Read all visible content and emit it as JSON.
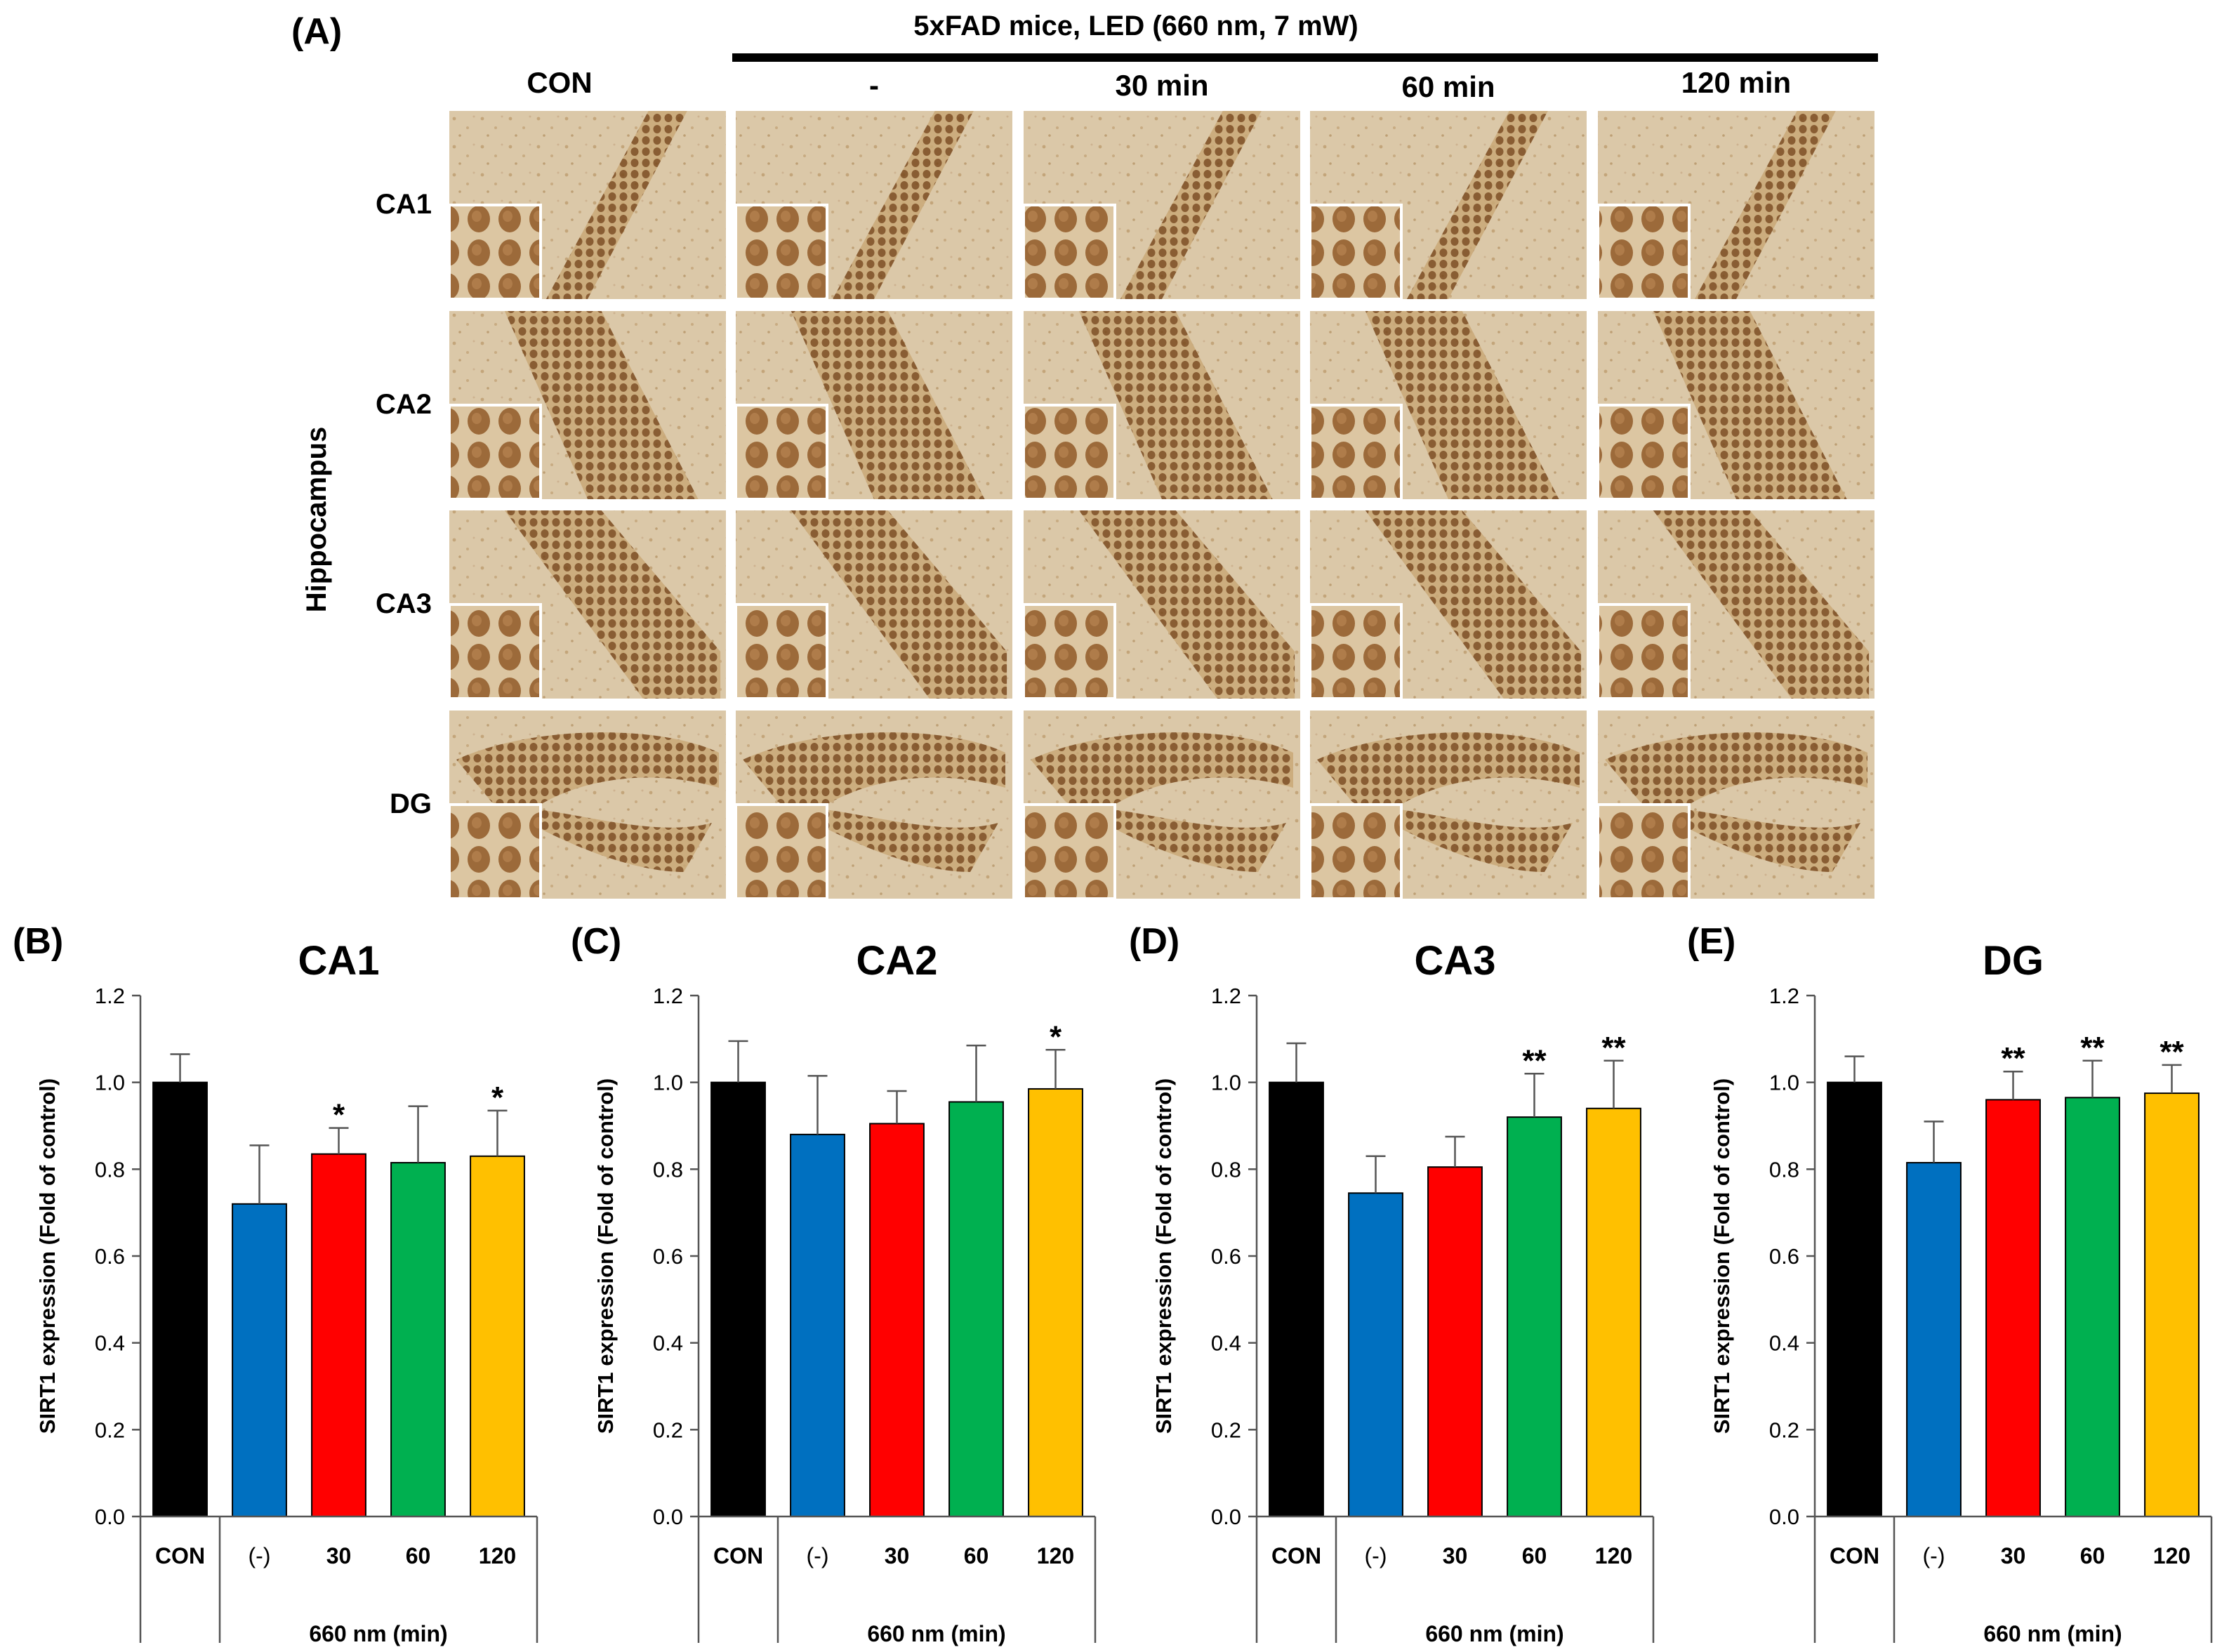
{
  "figure": {
    "panel_a_letter": "(A)",
    "header": "5xFAD mice, LED (660 nm, 7 mW)",
    "row_group_label": "Hippocampus",
    "columns": [
      "CON",
      "-",
      "30 min",
      "60 min",
      "120 min"
    ],
    "rows": [
      "CA1",
      "CA2",
      "CA3",
      "DG"
    ]
  },
  "colors": {
    "CON": "#000000",
    "minus": "#0070c0",
    "30": "#ff0000",
    "60": "#00b050",
    "120": "#ffc000",
    "tissue_bg": "#d9c5a4",
    "nucleus": "#8a5a2b"
  },
  "x_group_label": "660 nm (min)",
  "chart_data": [
    {
      "type": "bar",
      "panel": "(B)",
      "title": "CA1",
      "ylabel": "SIRT1 expression (Fold of control)",
      "xlabel": "660 nm (min)",
      "categories": [
        "CON",
        "(-)",
        "30",
        "60",
        "120"
      ],
      "values": [
        1.0,
        0.72,
        0.835,
        0.815,
        0.83
      ],
      "errors": [
        0.065,
        0.135,
        0.06,
        0.13,
        0.105
      ],
      "significance": [
        "",
        "",
        "*",
        "",
        "*"
      ],
      "ylim": [
        0,
        1.2
      ],
      "yticks": [
        "0.0",
        "0.2",
        "0.4",
        "0.6",
        "0.8",
        "1.0",
        "1.2"
      ]
    },
    {
      "type": "bar",
      "panel": "(C)",
      "title": "CA2",
      "ylabel": "SIRT1 expression (Fold of control)",
      "xlabel": "660 nm (min)",
      "categories": [
        "CON",
        "(-)",
        "30",
        "60",
        "120"
      ],
      "values": [
        1.0,
        0.88,
        0.905,
        0.955,
        0.985
      ],
      "errors": [
        0.095,
        0.135,
        0.075,
        0.13,
        0.09
      ],
      "significance": [
        "",
        "",
        "",
        "",
        "*"
      ],
      "ylim": [
        0,
        1.2
      ],
      "yticks": [
        "0.0",
        "0.2",
        "0.4",
        "0.6",
        "0.8",
        "1.0",
        "1.2"
      ]
    },
    {
      "type": "bar",
      "panel": "(D)",
      "title": "CA3",
      "ylabel": "SIRT1 expression (Fold of control)",
      "xlabel": "660 nm (min)",
      "categories": [
        "CON",
        "(-)",
        "30",
        "60",
        "120"
      ],
      "values": [
        1.0,
        0.745,
        0.805,
        0.92,
        0.94
      ],
      "errors": [
        0.09,
        0.085,
        0.07,
        0.1,
        0.11
      ],
      "significance": [
        "",
        "",
        "",
        "**",
        "**"
      ],
      "ylim": [
        0,
        1.2
      ],
      "yticks": [
        "0.0",
        "0.2",
        "0.4",
        "0.6",
        "0.8",
        "1.0",
        "1.2"
      ]
    },
    {
      "type": "bar",
      "panel": "(E)",
      "title": "DG",
      "ylabel": "SIRT1 expression (Fold of control)",
      "xlabel": "660 nm (min)",
      "categories": [
        "CON",
        "(-)",
        "30",
        "60",
        "120"
      ],
      "values": [
        1.0,
        0.815,
        0.96,
        0.965,
        0.975
      ],
      "errors": [
        0.06,
        0.095,
        0.065,
        0.085,
        0.065
      ],
      "significance": [
        "",
        "",
        "**",
        "**",
        "**"
      ],
      "ylim": [
        0,
        1.2
      ],
      "yticks": [
        "0.0",
        "0.2",
        "0.4",
        "0.6",
        "0.8",
        "1.0",
        "1.2"
      ]
    }
  ]
}
